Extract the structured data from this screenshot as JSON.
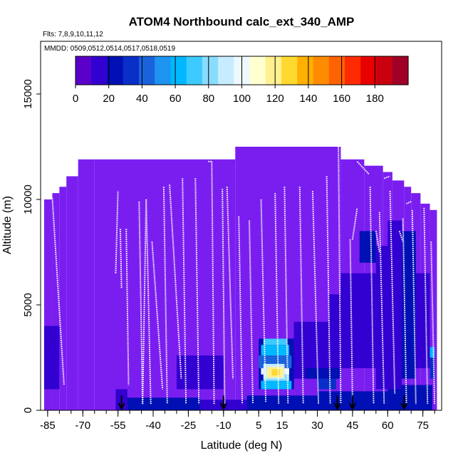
{
  "chart_data": {
    "type": "heatmap",
    "title": "ATOM4 Northbound calc_ext_340_AMP",
    "subtitle_flights": "Flts: 7,8,9,10,11,12",
    "subtitle_dates": "MMDD: 0509,0512,0514,0517,0518,0519",
    "xlabel": "Latitude (deg N)",
    "ylabel": "Altitude (m)",
    "xlim": [
      -88,
      83
    ],
    "ylim": [
      0,
      17500
    ],
    "x_ticks": [
      -85,
      -70,
      -55,
      -40,
      -25,
      -10,
      5,
      15,
      30,
      45,
      60,
      75
    ],
    "x_tick_labels": [
      "-85",
      "-70",
      "-55",
      "-40",
      "-25",
      "-10",
      "5",
      "15",
      "30",
      "45",
      "60",
      "75"
    ],
    "y_ticks": [
      0,
      5000,
      10000,
      15000
    ],
    "y_tick_labels": [
      "0",
      "5000",
      "10000",
      "15000"
    ],
    "colorbar": {
      "ticks": [
        0,
        20,
        40,
        60,
        80,
        100,
        120,
        140,
        160,
        180
      ],
      "tick_labels": [
        "0",
        "20",
        "40",
        "60",
        "80",
        "100",
        "120",
        "140",
        "160",
        "180"
      ],
      "range": [
        0,
        200
      ],
      "colors": [
        "#5a00c8",
        "#3200d0",
        "#0010b4",
        "#0a2ec8",
        "#1a62dc",
        "#1c94f0",
        "#00b8ff",
        "#3ccaff",
        "#8adcff",
        "#c8ecff",
        "#eef8ff",
        "#ffffd0",
        "#fff090",
        "#ffd830",
        "#ffb000",
        "#ff8c00",
        "#ff6200",
        "#ff2a00",
        "#e80000",
        "#c80010",
        "#a00028"
      ]
    },
    "background_color": "#7a1ef0",
    "profile_color": "#ffffff",
    "arrow_latitudes": [
      -53.5,
      -10,
      38.5,
      45,
      67
    ],
    "profiles": [
      {
        "x": [
          -86.5,
          -83
        ],
        "y": [
          10100,
          10100
        ]
      },
      {
        "x": [
          -83,
          -78
        ],
        "y": [
          10050,
          1200
        ]
      },
      {
        "x": [
          -77.5,
          -74
        ],
        "y": [
          11300,
          11700
        ]
      },
      {
        "x": [
          -74,
          -72
        ],
        "y": [
          11700,
          11800
        ]
      },
      {
        "x": [
          -56,
          -55
        ],
        "y": [
          6500,
          10400
        ]
      },
      {
        "x": [
          -54,
          -53.5
        ],
        "y": [
          8600,
          5800
        ]
      },
      {
        "x": [
          -51.5,
          -50.5
        ],
        "y": [
          8600,
          1200
        ]
      },
      {
        "x": [
          -46,
          -44.5
        ],
        "y": [
          9900,
          300
        ]
      },
      {
        "x": [
          -44.5,
          -43
        ],
        "y": [
          300,
          10000
        ]
      },
      {
        "x": [
          -43,
          -41
        ],
        "y": [
          10000,
          300
        ]
      },
      {
        "x": [
          -40.5,
          -36
        ],
        "y": [
          8000,
          1000
        ]
      },
      {
        "x": [
          -35.5,
          -34
        ],
        "y": [
          10600,
          300
        ]
      },
      {
        "x": [
          -33,
          -28
        ],
        "y": [
          10700,
          1500
        ]
      },
      {
        "x": [
          -27.5,
          -26
        ],
        "y": [
          11000,
          300
        ]
      },
      {
        "x": [
          -22,
          -20.5
        ],
        "y": [
          11000,
          300
        ]
      },
      {
        "x": [
          -16.5,
          -15
        ],
        "y": [
          11800,
          11800
        ]
      },
      {
        "x": [
          -15,
          -14
        ],
        "y": [
          11800,
          300
        ]
      },
      {
        "x": [
          -10.5,
          -9.5
        ],
        "y": [
          10500,
          300
        ]
      },
      {
        "x": [
          -8.5,
          -6
        ],
        "y": [
          10600,
          1500
        ]
      },
      {
        "x": [
          -3.5,
          -2
        ],
        "y": [
          9200,
          300
        ]
      },
      {
        "x": [
          1,
          2.5
        ],
        "y": [
          9000,
          300
        ]
      },
      {
        "x": [
          6,
          8
        ],
        "y": [
          10000,
          400
        ]
      },
      {
        "x": [
          12,
          13.5
        ],
        "y": [
          10300,
          300
        ]
      },
      {
        "x": [
          16,
          17.5
        ],
        "y": [
          10600,
          300
        ]
      },
      {
        "x": [
          22.5,
          24
        ],
        "y": [
          10600,
          300
        ]
      },
      {
        "x": [
          28,
          30.5
        ],
        "y": [
          10400,
          300
        ]
      },
      {
        "x": [
          34,
          35.5
        ],
        "y": [
          11100,
          300
        ]
      },
      {
        "x": [
          36,
          39
        ],
        "y": [
          12600,
          12600
        ]
      },
      {
        "x": [
          39,
          40
        ],
        "y": [
          12600,
          300
        ]
      },
      {
        "x": [
          44,
          45
        ],
        "y": [
          8100,
          300
        ]
      },
      {
        "x": [
          45,
          47
        ],
        "y": [
          8100,
          9600
        ]
      },
      {
        "x": [
          47,
          52
        ],
        "y": [
          11800,
          11200
        ]
      },
      {
        "x": [
          52.5,
          54
        ],
        "y": [
          10600,
          300
        ]
      },
      {
        "x": [
          55,
          56.5
        ],
        "y": [
          8500,
          7500
        ]
      },
      {
        "x": [
          56.5,
          58.5
        ],
        "y": [
          9400,
          300
        ]
      },
      {
        "x": [
          58.5,
          61
        ],
        "y": [
          11000,
          11100
        ]
      },
      {
        "x": [
          61,
          63
        ],
        "y": [
          10400,
          800
        ]
      },
      {
        "x": [
          65,
          66.5
        ],
        "y": [
          8500,
          8000
        ]
      },
      {
        "x": [
          66.5,
          68
        ],
        "y": [
          9100,
          300
        ]
      },
      {
        "x": [
          68,
          70
        ],
        "y": [
          9800,
          9900
        ]
      },
      {
        "x": [
          70.5,
          72
        ],
        "y": [
          9500,
          300
        ]
      },
      {
        "x": [
          75.5,
          77
        ],
        "y": [
          9600,
          300
        ]
      },
      {
        "x": [
          78.5,
          80
        ],
        "y": [
          8000,
          300
        ]
      }
    ]
  }
}
